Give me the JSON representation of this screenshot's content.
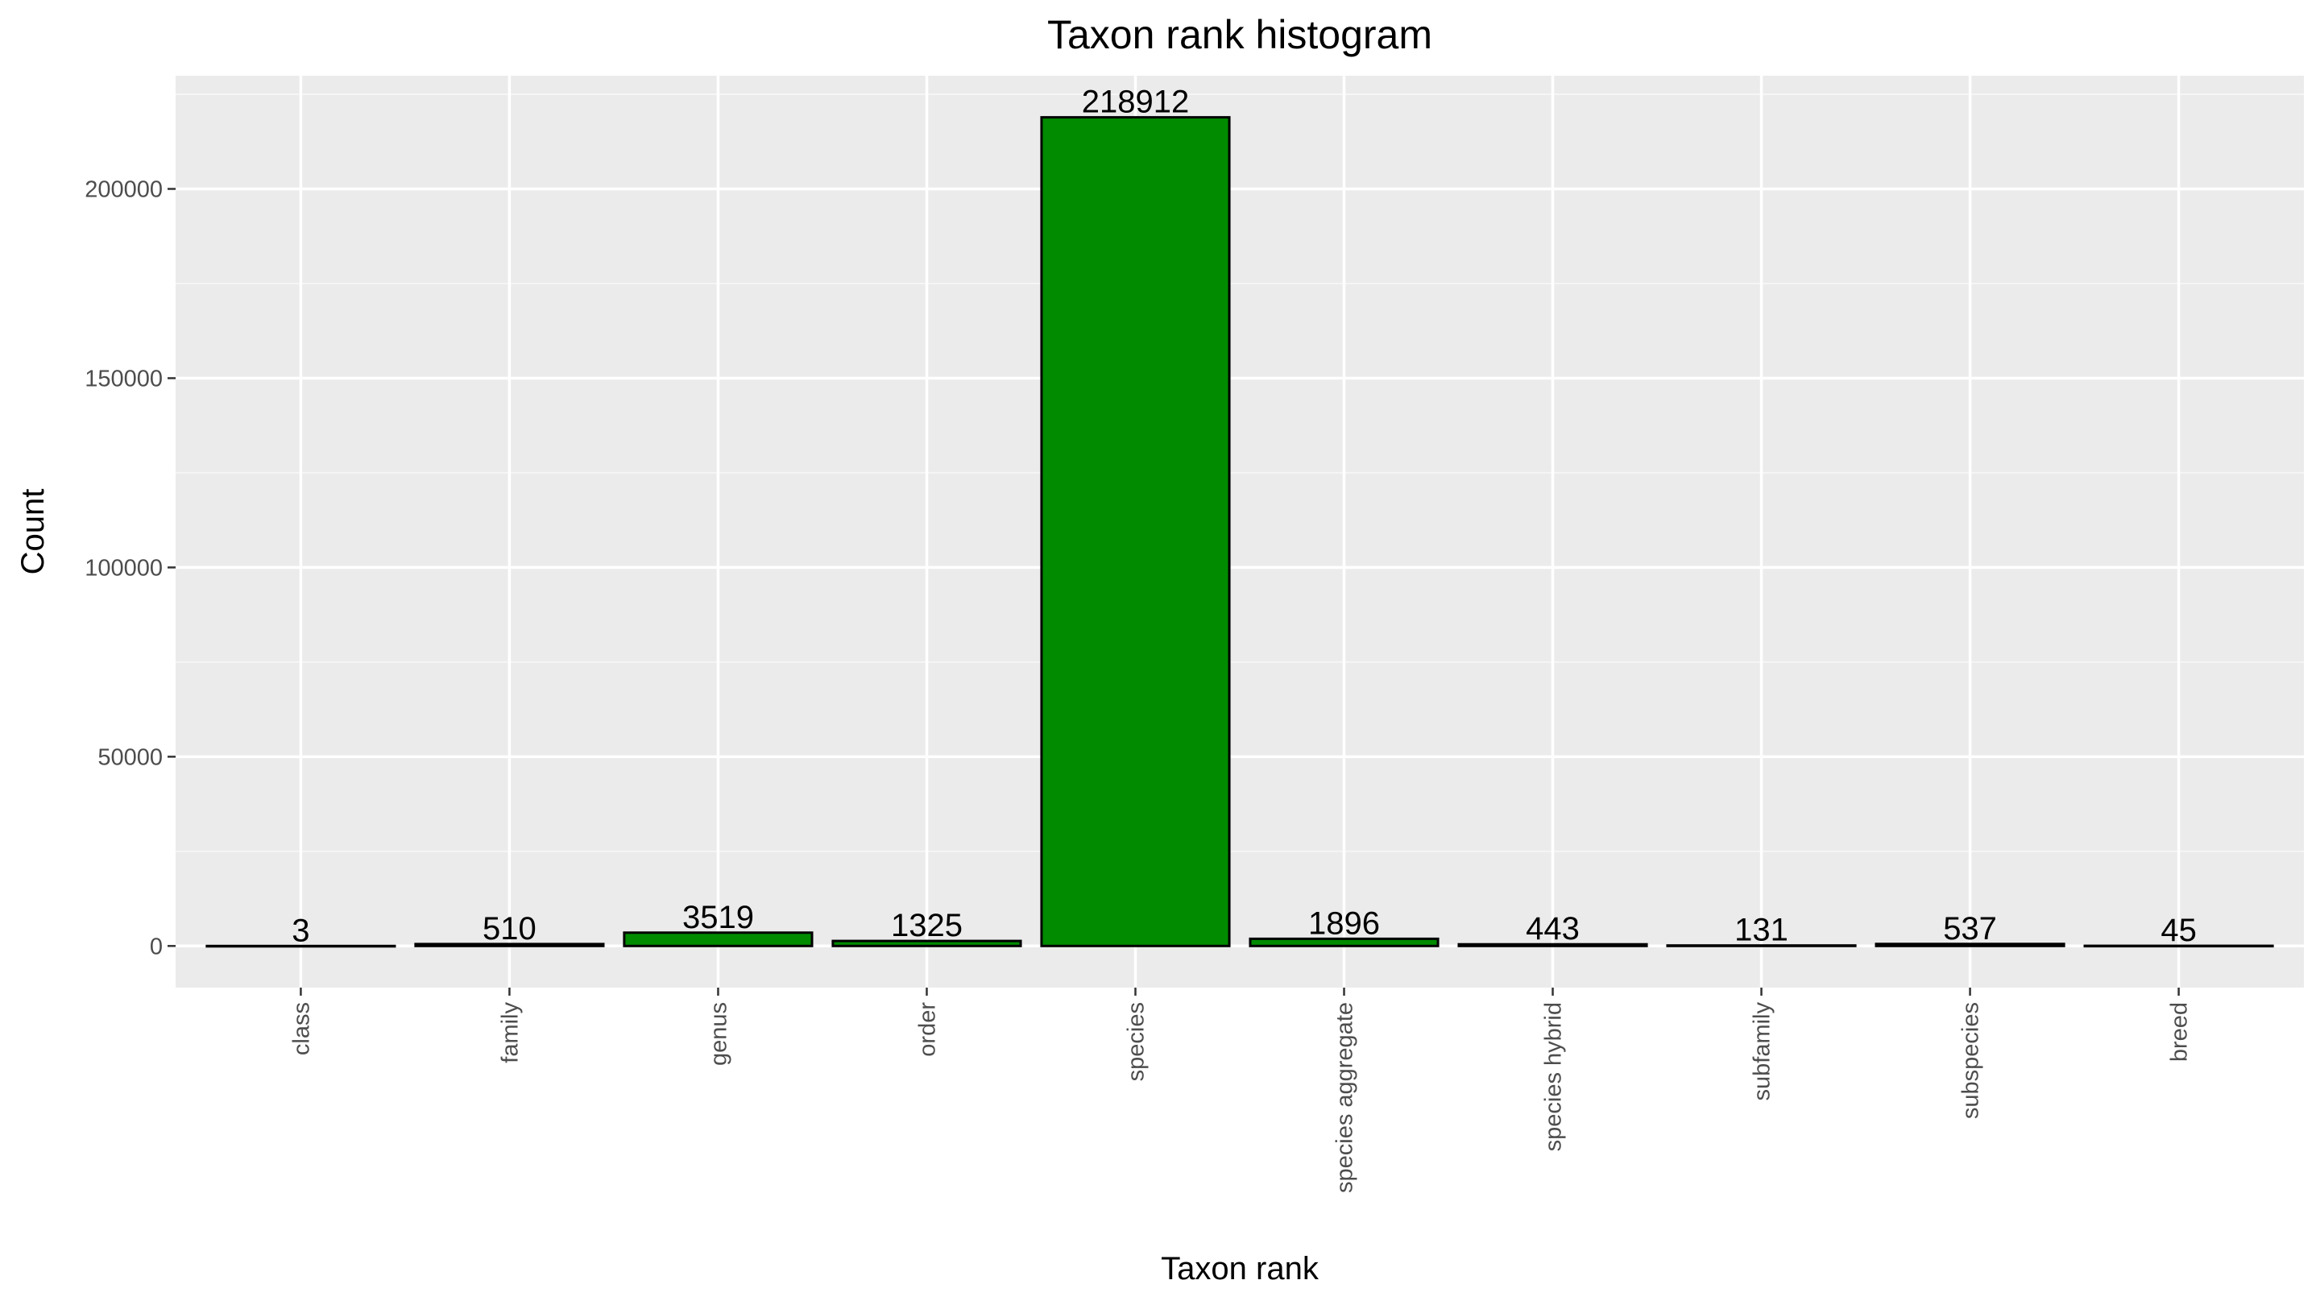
{
  "chart_data": {
    "type": "bar",
    "title": "Taxon rank histogram",
    "xlabel": "Taxon rank",
    "ylabel": "Count",
    "categories": [
      "class",
      "family",
      "genus",
      "order",
      "species",
      "species aggregate",
      "species hybrid",
      "subfamily",
      "subspecies",
      "breed"
    ],
    "values": [
      3,
      510,
      3519,
      1325,
      218912,
      1896,
      443,
      131,
      537,
      45
    ],
    "data_labels": [
      "3",
      "510",
      "3519",
      "1325",
      "218912",
      "1896",
      "443",
      "131",
      "537",
      "45"
    ],
    "ylim": [
      -11000,
      229900
    ],
    "yticks": [
      0,
      50000,
      100000,
      150000,
      200000
    ],
    "ytick_labels": [
      "0",
      "50000",
      "100000",
      "150000",
      "200000"
    ],
    "grid": true,
    "legend": "none",
    "colors": {
      "bar_fill": "#008B00",
      "bar_stroke": "#000000",
      "panel_bg": "#EBEBEB",
      "grid_major": "#FFFFFF",
      "grid_minor": "#F5F5F5"
    }
  }
}
